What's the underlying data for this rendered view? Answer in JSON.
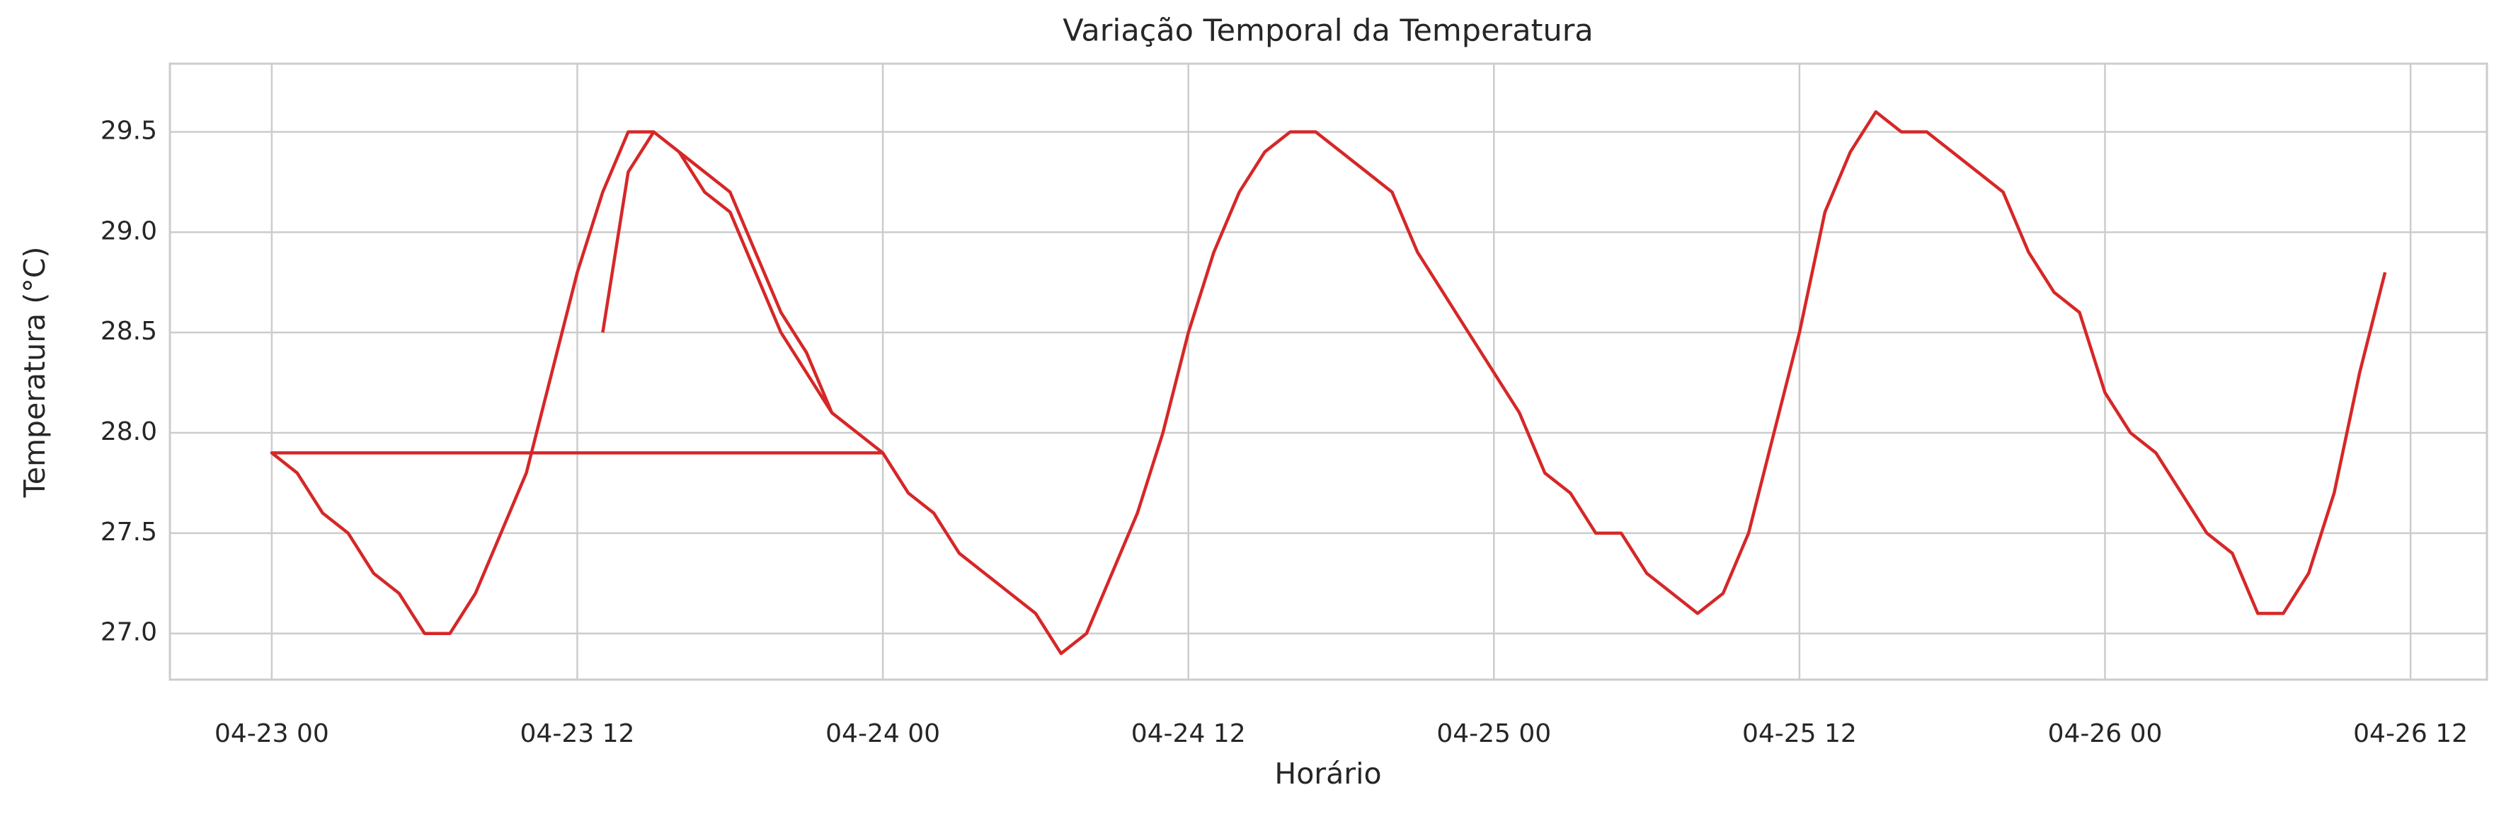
{
  "chart_data": {
    "type": "line",
    "title": "Variação Temporal da Temperatura",
    "x_label": "Horário",
    "y_label": "Temperatura (°C)",
    "x": [
      "04-23 13",
      "04-23 14",
      "04-23 15",
      "04-23 16",
      "04-23 17",
      "04-23 18",
      "04-23 19",
      "04-23 20",
      "04-23 21",
      "04-23 22",
      "04-23 23",
      "04-24 00",
      "04-23 00",
      "04-23 01",
      "04-23 02",
      "04-23 03",
      "04-23 04",
      "04-23 05",
      "04-23 06",
      "04-23 07",
      "04-23 08",
      "04-23 09",
      "04-23 10",
      "04-23 11",
      "04-23 12",
      "04-23 13",
      "04-23 14",
      "04-23 15",
      "04-23 16",
      "04-23 17",
      "04-23 18",
      "04-23 19",
      "04-23 20",
      "04-23 21",
      "04-23 22",
      "04-23 23",
      "04-24 00",
      "04-24 01",
      "04-24 02",
      "04-24 03",
      "04-24 04",
      "04-24 05",
      "04-24 06",
      "04-24 07",
      "04-24 08",
      "04-24 09",
      "04-24 10",
      "04-24 11",
      "04-24 12",
      "04-24 13",
      "04-24 14",
      "04-24 15",
      "04-24 16",
      "04-24 17",
      "04-24 18",
      "04-24 19",
      "04-24 20",
      "04-24 21",
      "04-24 22",
      "04-24 23",
      "04-25 00",
      "04-25 01",
      "04-25 02",
      "04-25 03",
      "04-25 04",
      "04-25 05",
      "04-25 06",
      "04-25 07",
      "04-25 08",
      "04-25 09",
      "04-25 10",
      "04-25 11",
      "04-25 12",
      "04-25 13",
      "04-25 14",
      "04-25 15",
      "04-25 16",
      "04-25 17",
      "04-25 18",
      "04-25 19",
      "04-25 20",
      "04-25 21",
      "04-25 22",
      "04-25 23",
      "04-26 00",
      "04-26 01",
      "04-26 02",
      "04-26 03",
      "04-26 04",
      "04-26 05",
      "04-26 06",
      "04-26 07",
      "04-26 08",
      "04-26 09",
      "04-26 10",
      "04-26 11"
    ],
    "series": [
      {
        "name": "Temperatura",
        "color": "#d62728",
        "values": [
          28.5,
          29.3,
          29.5,
          29.4,
          29.3,
          29.2,
          28.9,
          28.6,
          28.4,
          28.1,
          28.0,
          27.9,
          27.9,
          27.8,
          27.6,
          27.5,
          27.3,
          27.2,
          27.0,
          27.0,
          27.2,
          27.5,
          27.8,
          28.3,
          28.8,
          29.2,
          29.5,
          29.5,
          29.4,
          29.2,
          29.1,
          28.8,
          28.5,
          28.3,
          28.1,
          28.0,
          27.9,
          27.7,
          27.6,
          27.4,
          27.3,
          27.2,
          27.1,
          26.9,
          27.0,
          27.3,
          27.6,
          28.0,
          28.5,
          28.9,
          29.2,
          29.4,
          29.5,
          29.5,
          29.4,
          29.3,
          29.2,
          28.9,
          28.7,
          28.5,
          28.3,
          28.1,
          27.8,
          27.7,
          27.5,
          27.5,
          27.3,
          27.2,
          27.1,
          27.2,
          27.5,
          28.0,
          28.5,
          29.1,
          29.4,
          29.6,
          29.5,
          29.5,
          29.4,
          29.3,
          29.2,
          28.9,
          28.7,
          28.6,
          28.2,
          28.0,
          27.9,
          27.7,
          27.5,
          27.4,
          27.1,
          27.1,
          27.3,
          27.7,
          28.3,
          28.8
        ]
      }
    ],
    "xlim": [
      "04-22 20",
      "04-26 15"
    ],
    "xticks": [
      "04-23 00",
      "04-23 12",
      "04-24 00",
      "04-24 12",
      "04-25 00",
      "04-25 12",
      "04-26 00",
      "04-26 12"
    ],
    "ylim": [
      26.77,
      29.84
    ],
    "yticks": [
      {
        "value": 27,
        "label": "27.0"
      },
      {
        "value": 27.5,
        "label": "27.5"
      },
      {
        "value": 28,
        "label": "28.0"
      },
      {
        "value": 28.5,
        "label": "28.5"
      },
      {
        "value": 29,
        "label": "29.0"
      },
      {
        "value": 29.5,
        "label": "29.5"
      }
    ],
    "grid": true
  }
}
